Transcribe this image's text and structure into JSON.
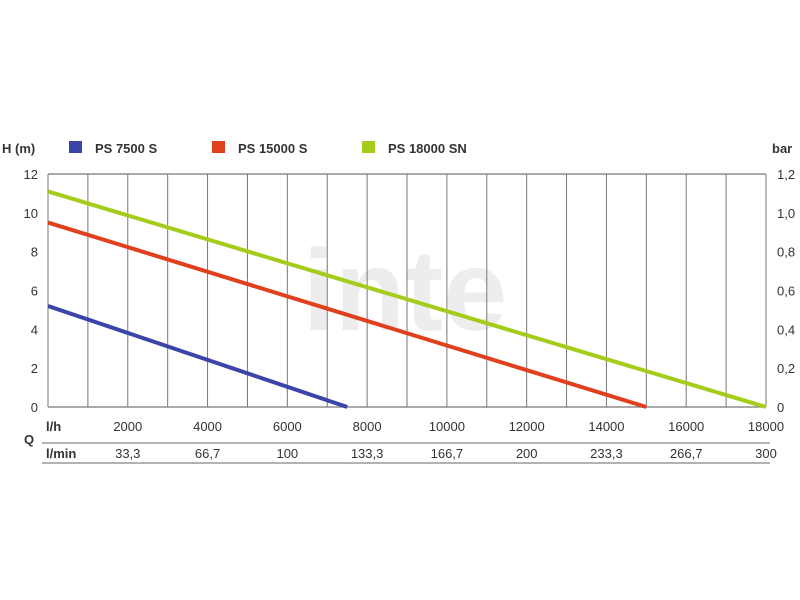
{
  "chart_data": {
    "type": "line",
    "watermark": "inte",
    "left_axis_label": "H (m)",
    "right_axis_label": "bar",
    "legend_position": "top",
    "grid": true,
    "x_axis": {
      "q_label": "Q",
      "lh_label": "l/h",
      "lmin_label": "l/min",
      "range": [
        0,
        18000
      ],
      "ticks": [
        {
          "lh": "2000",
          "lmin": "33,3"
        },
        {
          "lh": "4000",
          "lmin": "66,7"
        },
        {
          "lh": "6000",
          "lmin": "100"
        },
        {
          "lh": "8000",
          "lmin": "133,3"
        },
        {
          "lh": "10000",
          "lmin": "166,7"
        },
        {
          "lh": "12000",
          "lmin": "200"
        },
        {
          "lh": "14000",
          "lmin": "233,3"
        },
        {
          "lh": "16000",
          "lmin": "266,7"
        },
        {
          "lh": "18000",
          "lmin": "300"
        }
      ]
    },
    "y_left": {
      "range": [
        0,
        12
      ],
      "ticks": [
        "0",
        "2",
        "4",
        "6",
        "8",
        "10",
        "12"
      ]
    },
    "y_right": {
      "ticks": [
        "0",
        "0,2",
        "0,4",
        "0,6",
        "0,8",
        "1,0",
        "1,2"
      ]
    },
    "series": [
      {
        "name": "PS 7500 S",
        "color": "#3b44a8",
        "x": [
          0,
          7500
        ],
        "y": [
          5.2,
          0
        ]
      },
      {
        "name": "PS 15000 S",
        "color": "#e1401e",
        "x": [
          0,
          15000
        ],
        "y": [
          9.5,
          0
        ]
      },
      {
        "name": "PS 18000 SN",
        "color": "#a3cd1a",
        "x": [
          0,
          18000
        ],
        "y": [
          11.1,
          0
        ]
      }
    ]
  }
}
